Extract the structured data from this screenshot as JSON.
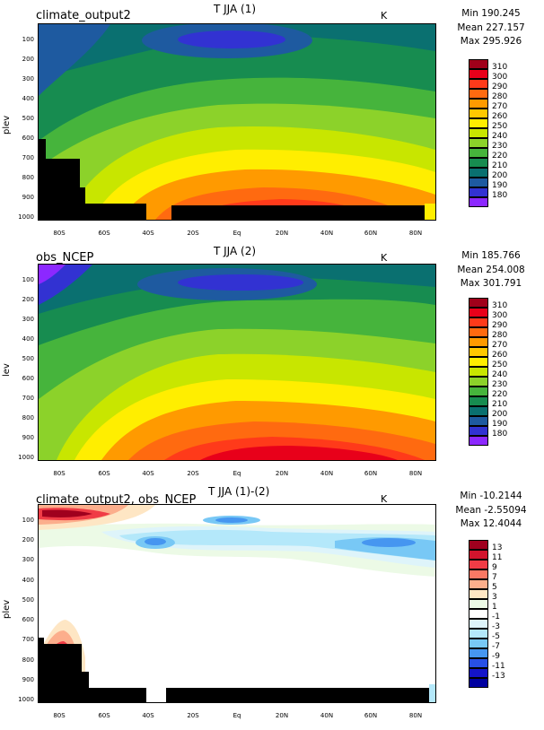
{
  "panels": [
    {
      "left_label": "climate_output2",
      "title": "T JJA (1)",
      "units": "K",
      "stats": {
        "min": "Min 190.245",
        "mean": "Mean 227.157",
        "max": "Max 295.926"
      },
      "ylabel": "plev",
      "yticks": [
        "100",
        "200",
        "300",
        "400",
        "500",
        "600",
        "700",
        "800",
        "900",
        "1000"
      ],
      "xticks": [
        "80S",
        "60S",
        "40S",
        "20S",
        "Eq",
        "20N",
        "40N",
        "60N",
        "80N"
      ],
      "legend": {
        "values": [
          "310",
          "300",
          "290",
          "280",
          "270",
          "260",
          "250",
          "240",
          "230",
          "220",
          "210",
          "200",
          "190",
          "180"
        ],
        "colors": [
          "#a0001a",
          "#e8001a",
          "#ff3a1a",
          "#ff6a10",
          "#ff9a00",
          "#ffc800",
          "#ffee00",
          "#c8e600",
          "#8cd22a",
          "#46b43c",
          "#178c50",
          "#0a7070",
          "#1e5aa0",
          "#3232d2",
          "#8c28ff"
        ]
      }
    },
    {
      "left_label": "obs_NCEP",
      "title": "T JJA (2)",
      "units": "K",
      "stats": {
        "min": "Min 185.766",
        "mean": "Mean 254.008",
        "max": "Max 301.791"
      },
      "ylabel": "lev",
      "yticks": [
        "100",
        "200",
        "300",
        "400",
        "500",
        "600",
        "700",
        "800",
        "900",
        "1000"
      ],
      "xticks": [
        "80S",
        "60S",
        "40S",
        "20S",
        "Eq",
        "20N",
        "40N",
        "60N",
        "80N"
      ],
      "legend": {
        "values": [
          "310",
          "300",
          "290",
          "280",
          "270",
          "260",
          "250",
          "240",
          "230",
          "220",
          "210",
          "200",
          "190",
          "180"
        ],
        "colors": [
          "#a0001a",
          "#e8001a",
          "#ff3a1a",
          "#ff6a10",
          "#ff9a00",
          "#ffc800",
          "#ffee00",
          "#c8e600",
          "#8cd22a",
          "#46b43c",
          "#178c50",
          "#0a7070",
          "#1e5aa0",
          "#3232d2",
          "#8c28ff"
        ]
      }
    },
    {
      "left_label": "climate_output2, obs_NCEP",
      "title": "T JJA (1)-(2)",
      "units": "K",
      "stats": {
        "min": "Min -10.2144",
        "mean": "Mean -2.55094",
        "max": "Max 12.4044"
      },
      "ylabel": "plev",
      "yticks": [
        "100",
        "200",
        "300",
        "400",
        "500",
        "600",
        "700",
        "800",
        "900",
        "1000"
      ],
      "xticks": [
        "80S",
        "60S",
        "40S",
        "20S",
        "Eq",
        "20N",
        "40N",
        "60N",
        "80N"
      ],
      "legend": {
        "values": [
          "13",
          "11",
          "9",
          "7",
          "5",
          "3",
          "1",
          "-1",
          "-3",
          "-5",
          "-7",
          "-9",
          "-11",
          "-13"
        ],
        "colors": [
          "#a0001e",
          "#d2142d",
          "#f03c46",
          "#fa7864",
          "#fcae8c",
          "#fee6c4",
          "#ecfae6",
          "#ffffff",
          "#def4fa",
          "#b4e8fa",
          "#78c8f5",
          "#4696f0",
          "#2850e6",
          "#1414c8",
          "#0000a0"
        ]
      }
    }
  ],
  "chart_data": [
    {
      "type": "heatmap",
      "title": "T JJA (1)",
      "xlabel": "",
      "ylabel": "plev",
      "units": "K",
      "x": [
        "80S",
        "60S",
        "40S",
        "20S",
        "Eq",
        "20N",
        "40N",
        "60N",
        "80N"
      ],
      "y": [
        100,
        200,
        300,
        400,
        500,
        600,
        700,
        800,
        900,
        1000
      ],
      "levels": [
        180,
        190,
        200,
        210,
        220,
        230,
        240,
        250,
        260,
        270,
        280,
        290,
        300,
        310
      ],
      "min": 190.245,
      "mean": 227.157,
      "max": 295.926
    },
    {
      "type": "heatmap",
      "title": "T JJA (2)",
      "xlabel": "",
      "ylabel": "lev",
      "units": "K",
      "x": [
        "80S",
        "60S",
        "40S",
        "20S",
        "Eq",
        "20N",
        "40N",
        "60N",
        "80N"
      ],
      "y": [
        100,
        200,
        300,
        400,
        500,
        600,
        700,
        800,
        900,
        1000
      ],
      "levels": [
        180,
        190,
        200,
        210,
        220,
        230,
        240,
        250,
        260,
        270,
        280,
        290,
        300,
        310
      ],
      "min": 185.766,
      "mean": 254.008,
      "max": 301.791
    },
    {
      "type": "heatmap",
      "title": "T JJA (1)-(2)",
      "xlabel": "",
      "ylabel": "plev",
      "units": "K",
      "x": [
        "80S",
        "60S",
        "40S",
        "20S",
        "Eq",
        "20N",
        "40N",
        "60N",
        "80N"
      ],
      "y": [
        100,
        200,
        300,
        400,
        500,
        600,
        700,
        800,
        900,
        1000
      ],
      "levels": [
        -13,
        -11,
        -9,
        -7,
        -5,
        -3,
        -1,
        1,
        3,
        5,
        7,
        9,
        11,
        13
      ],
      "min": -10.2144,
      "mean": -2.55094,
      "max": 12.4044
    }
  ]
}
